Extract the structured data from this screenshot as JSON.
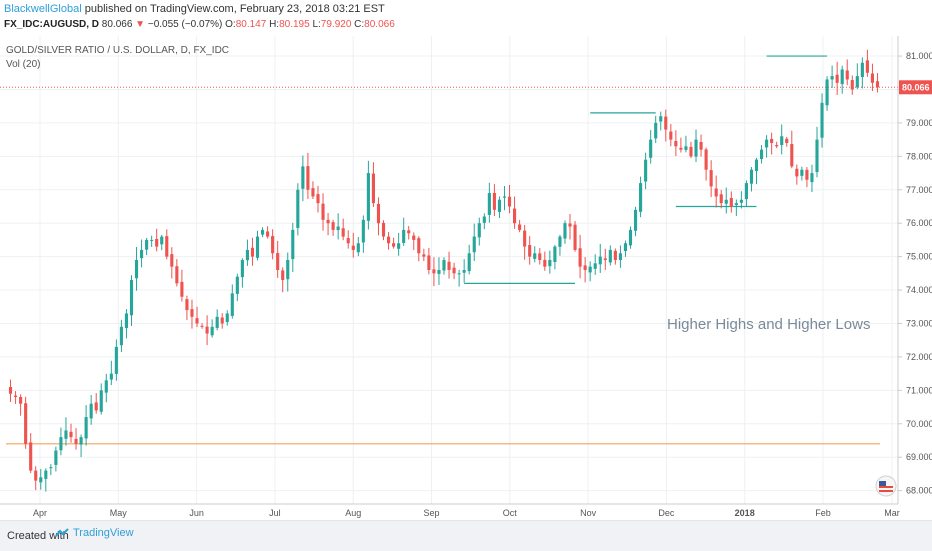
{
  "header": {
    "author": "BlackwellGlobal",
    "published": "published on TradingView.com, February 23, 2018 03:21 EST",
    "symbol": "FX_IDC:AUGUSD, D",
    "last": "80.066",
    "arrow": "▼",
    "change": "−0.055 (−0.07%)",
    "o_label": "O:",
    "o": "80.147",
    "h_label": "H:",
    "h": "80.195",
    "l_label": "L:",
    "l": "79.920",
    "c_label": "C:",
    "c": "80.066"
  },
  "legend": {
    "line1": "GOLD/SILVER RATIO / U.S. DOLLAR, D, FX_IDC",
    "line2": "Vol (20)"
  },
  "annotation": "Higher Highs and Higher Lows",
  "footer": {
    "created_with": "Created with",
    "brand": "TradingView"
  },
  "colors": {
    "up": "#26a69a",
    "down": "#ef5350",
    "support": "#26a69a",
    "horizontal_orange": "#f5a35c",
    "price_line": "#ef5350"
  },
  "chart_data": {
    "type": "candlestick",
    "title": "GOLD/SILVER RATIO / U.S. DOLLAR, D, FX_IDC",
    "y_ticks": [
      "68.000",
      "69.000",
      "70.000",
      "71.000",
      "72.000",
      "73.000",
      "74.000",
      "75.000",
      "76.000",
      "77.000",
      "78.000",
      "79.000",
      "80.000",
      "81.000"
    ],
    "x_ticks": [
      "Apr",
      "May",
      "Jun",
      "Jul",
      "Aug",
      "Sep",
      "Oct",
      "Nov",
      "Dec",
      "2018",
      "Feb",
      "Mar"
    ],
    "ylim": [
      67.6,
      81.6
    ],
    "last_price": 80.066,
    "last_price_label": "80.066",
    "path": [
      70.9,
      70.8,
      70.6,
      69.4,
      68.6,
      68.3,
      68.4,
      68.6,
      68.7,
      69.2,
      69.6,
      69.8,
      69.6,
      69.4,
      69.6,
      70.2,
      70.6,
      70.4,
      71.0,
      71.3,
      71.5,
      72.3,
      72.9,
      73.3,
      74.3,
      74.9,
      75.2,
      75.5,
      75.5,
      75.3,
      75.6,
      75.0,
      74.7,
      74.2,
      73.8,
      73.4,
      73.2,
      73.0,
      72.9,
      72.7,
      72.9,
      73.2,
      73.0,
      73.3,
      73.9,
      74.4,
      74.9,
      75.2,
      75.0,
      75.6,
      75.8,
      75.6,
      75.1,
      74.6,
      74.3,
      74.9,
      75.8,
      77.0,
      77.7,
      77.0,
      76.8,
      76.6,
      76.1,
      76.0,
      75.8,
      75.9,
      75.6,
      75.4,
      75.2,
      75.4,
      76.1,
      77.5,
      76.6,
      76.0,
      75.6,
      75.4,
      75.3,
      75.4,
      75.8,
      75.7,
      75.5,
      75.1,
      75.0,
      74.6,
      74.5,
      74.6,
      74.9,
      74.6,
      74.5,
      74.5,
      74.6,
      75.1,
      75.6,
      76.0,
      76.2,
      76.9,
      76.4,
      76.7,
      76.8,
      76.5,
      76.0,
      75.8,
      75.3,
      75.0,
      75.1,
      74.9,
      74.7,
      74.9,
      75.3,
      75.6,
      76.0,
      75.9,
      75.2,
      74.7,
      74.6,
      74.7,
      74.8,
      75.0,
      74.9,
      75.2,
      74.9,
      75.1,
      75.4,
      75.8,
      76.4,
      77.2,
      77.9,
      78.5,
      79.0,
      79.2,
      78.8,
      78.5,
      78.3,
      78.2,
      78.3,
      78.0,
      78.5,
      78.2,
      77.6,
      77.1,
      76.8,
      76.6,
      76.7,
      76.5,
      76.6,
      76.7,
      77.2,
      77.6,
      77.9,
      78.2,
      78.5,
      78.4,
      78.3,
      78.6,
      78.4,
      77.7,
      77.4,
      77.6,
      77.3,
      77.5,
      78.5,
      79.6,
      80.3,
      80.4,
      80.2,
      80.6,
      80.3,
      80.0,
      80.4,
      80.8,
      80.5,
      80.2,
      80.066
    ],
    "annotations": [
      {
        "kind": "hline",
        "y": 69.4,
        "color": "orange",
        "x_from": 0,
        "x_to": 1
      },
      {
        "kind": "segment",
        "y": 74.2,
        "from_index": 90,
        "to_index": 112,
        "color": "green"
      },
      {
        "kind": "segment",
        "y": 79.3,
        "from_index": 115,
        "to_index": 128,
        "color": "green"
      },
      {
        "kind": "segment",
        "y": 76.5,
        "from_index": 132,
        "to_index": 148,
        "color": "green"
      },
      {
        "kind": "segment",
        "y": 81.0,
        "from_index": 150,
        "to_index": 162,
        "color": "green"
      }
    ]
  }
}
